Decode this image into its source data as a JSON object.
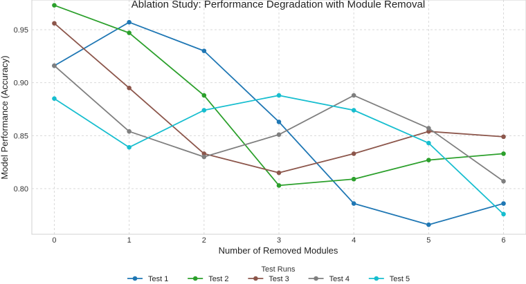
{
  "chart_data": {
    "type": "line",
    "title": "Ablation Study: Performance Degradation with Module Removal",
    "xlabel": "Number of Removed Modules",
    "ylabel": "Model Performance (Accuracy)",
    "x": [
      0,
      1,
      2,
      3,
      4,
      5,
      6
    ],
    "xlim": [
      -0.3,
      6.3
    ],
    "ylim": [
      0.757,
      0.978
    ],
    "xticks": [
      "0",
      "1",
      "2",
      "3",
      "4",
      "5",
      "6"
    ],
    "yticks": [
      "0.80",
      "0.85",
      "0.90",
      "0.95"
    ],
    "grid": true,
    "legend": {
      "title": "Test Runs",
      "placement": "bottom-center"
    },
    "series": [
      {
        "name": "Test 1",
        "color": "#1f77b4",
        "values": [
          0.916,
          0.957,
          0.93,
          0.863,
          0.786,
          0.766,
          0.786
        ]
      },
      {
        "name": "Test 2",
        "color": "#2ca02c",
        "values": [
          0.973,
          0.947,
          0.888,
          0.803,
          0.809,
          0.827,
          0.833
        ]
      },
      {
        "name": "Test 3",
        "color": "#8c564b",
        "values": [
          0.956,
          0.895,
          0.833,
          0.815,
          0.833,
          0.854,
          0.849
        ]
      },
      {
        "name": "Test 4",
        "color": "#7f7f7f",
        "values": [
          0.916,
          0.854,
          0.83,
          0.851,
          0.888,
          0.857,
          0.807
        ]
      },
      {
        "name": "Test 5",
        "color": "#17becf",
        "values": [
          0.885,
          0.839,
          0.874,
          0.888,
          0.874,
          0.843,
          0.776
        ]
      }
    ]
  }
}
